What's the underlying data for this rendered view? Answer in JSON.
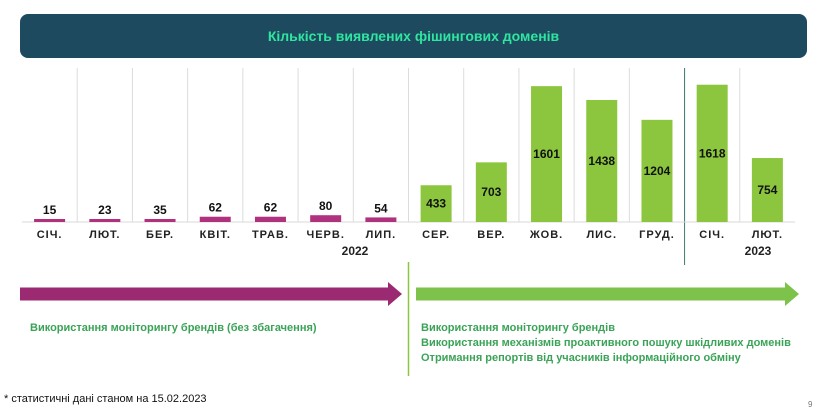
{
  "header": {
    "title": "Кількість виявлених фішингових доменів"
  },
  "chart_data": {
    "type": "bar",
    "title": "Кількість виявлених фішингових доменів",
    "categories": [
      "СІЧ.",
      "ЛЮТ.",
      "БЕР.",
      "КВІТ.",
      "ТРАВ.",
      "ЧЕРВ.",
      "ЛИП.",
      "СЕР.",
      "ВЕР.",
      "ЖОВ.",
      "ЛИС.",
      "ГРУД.",
      "СІЧ.",
      "ЛЮТ."
    ],
    "values": [
      15,
      23,
      35,
      62,
      62,
      80,
      54,
      433,
      703,
      1601,
      1438,
      1204,
      1618,
      754
    ],
    "ylim": [
      0,
      1650
    ],
    "grid": false,
    "year_groups": [
      {
        "label": "2022",
        "start": 0,
        "end": 11
      },
      {
        "label": "2023",
        "start": 12,
        "end": 13
      }
    ],
    "colors": {
      "phase1": "#b0317e",
      "phase2": "#8cc63f"
    },
    "phase_split_index": 7
  },
  "phases": [
    {
      "notes": [
        "Використання моніторингу брендів (без збагачення)"
      ],
      "color": "#9b2a72"
    },
    {
      "notes": [
        "Використання моніторингу брендів",
        "Використання механізмів проактивного пошуку шкідливих доменів",
        "Отримання репортів від учасників інформаційного обміну"
      ],
      "color": "#7dc24b"
    }
  ],
  "footnote": "* статистичні дані станом на 15.02.2023",
  "page_number": "9"
}
